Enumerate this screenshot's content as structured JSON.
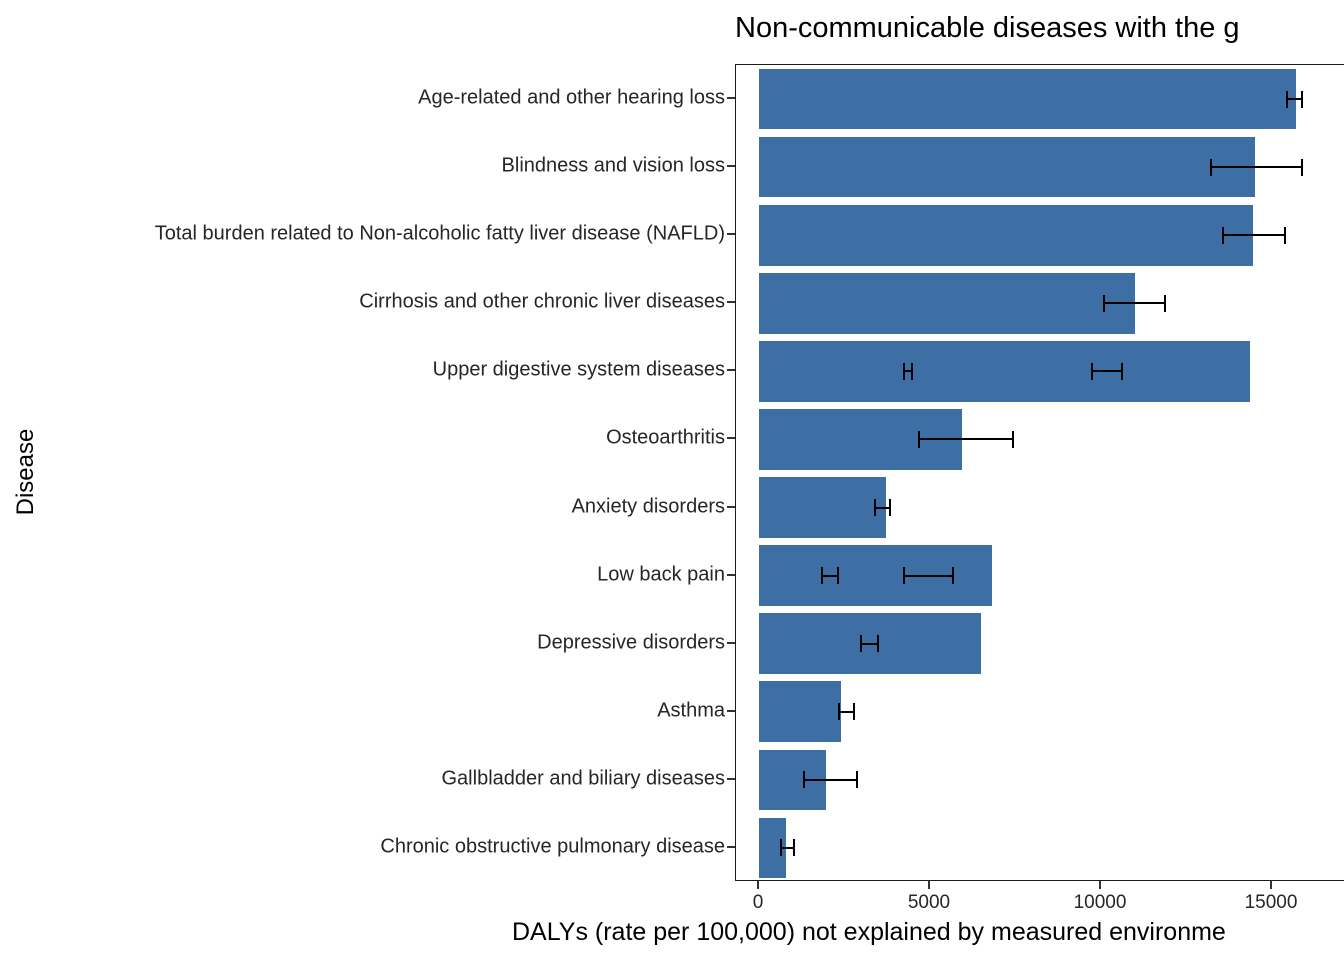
{
  "chart_data": {
    "type": "bar",
    "orientation": "horizontal",
    "title": "Non-communicable diseases with the g",
    "xlabel": "DALYs (rate per 100,000) not explained by measured environme",
    "ylabel": "Disease",
    "bar_color": "#3D6FA5",
    "grid": false,
    "legend": "none",
    "xlim": [
      0,
      17100
    ],
    "x_ticks": [
      0,
      5000,
      10000,
      15000
    ],
    "x_tick_labels": [
      "0",
      "5000",
      "10000",
      "15000"
    ],
    "categories": [
      "Age-related and other hearing loss",
      "Blindness and vision loss",
      "Total burden related to Non-alcoholic fatty liver disease (NAFLD)",
      "Cirrhosis and other chronic liver diseases",
      "Upper digestive system diseases",
      "Osteoarthritis",
      "Anxiety disorders",
      "Low back pain",
      "Depressive disorders",
      "Asthma",
      "Gallbladder and biliary diseases",
      "Chronic obstructive pulmonary disease"
    ],
    "values": [
      15700,
      14500,
      14450,
      11000,
      14350,
      5950,
      3700,
      6800,
      6500,
      2400,
      1950,
      800
    ],
    "error_bars": [
      [
        [
          15400,
          15900
        ]
      ],
      [
        [
          13200,
          15900
        ]
      ],
      [
        [
          13550,
          15400
        ]
      ],
      [
        [
          10050,
          11900
        ]
      ],
      [
        [
          4200,
          4500
        ],
        [
          9700,
          10650
        ]
      ],
      [
        [
          4650,
          7450
        ]
      ],
      [
        [
          3350,
          3850
        ]
      ],
      [
        [
          1800,
          2350
        ],
        [
          4200,
          5700
        ]
      ],
      [
        [
          2950,
          3500
        ]
      ],
      [
        [
          2300,
          2800
        ]
      ],
      [
        [
          1300,
          2900
        ]
      ],
      [
        [
          600,
          1050
        ]
      ]
    ]
  }
}
